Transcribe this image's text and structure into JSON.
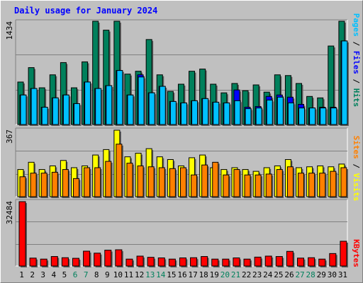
{
  "title": "Daily usage for January 2024",
  "colors": {
    "title": "#0000ff",
    "hits": "#00805c",
    "files": "#0000ff",
    "pages": "#00c0ff",
    "visits": "#ffff00",
    "sites": "#ff8000",
    "kbytes": "#ff0000",
    "weekend_label": "#00805c",
    "panel_bg": "#c0c0c0",
    "grid": "#808080"
  },
  "chart_data": [
    {
      "type": "bar",
      "title": "Daily usage for January 2024",
      "categories": [
        "1",
        "2",
        "3",
        "4",
        "5",
        "6",
        "7",
        "8",
        "9",
        "10",
        "11",
        "12",
        "13",
        "14",
        "15",
        "16",
        "17",
        "18",
        "19",
        "20",
        "21",
        "22",
        "23",
        "24",
        "25",
        "26",
        "27",
        "28",
        "29",
        "30",
        "31"
      ],
      "weekend_categories": [
        "6",
        "7",
        "13",
        "14",
        "20",
        "21",
        "27",
        "28"
      ],
      "ymax_label": "1434",
      "ylim": [
        0,
        1434
      ],
      "right_label": {
        "pages": "Pages",
        "sep1": " / ",
        "files": "Files",
        "sep2": " / ",
        "hits": "Hits"
      },
      "series": [
        {
          "name": "Hits",
          "values": [
            590,
            790,
            510,
            690,
            860,
            510,
            870,
            1434,
            1310,
            1434,
            700,
            740,
            1180,
            690,
            460,
            560,
            740,
            770,
            560,
            440,
            570,
            470,
            550,
            450,
            690,
            680,
            570,
            390,
            370,
            1090,
            1434
          ]
        },
        {
          "name": "Files",
          "values": [
            410,
            500,
            240,
            370,
            410,
            290,
            590,
            500,
            540,
            750,
            410,
            690,
            440,
            530,
            320,
            300,
            330,
            360,
            310,
            300,
            480,
            240,
            250,
            390,
            410,
            380,
            280,
            230,
            240,
            240,
            1160
          ]
        },
        {
          "name": "Pages",
          "values": [
            410,
            500,
            240,
            370,
            410,
            290,
            590,
            500,
            540,
            750,
            410,
            660,
            440,
            530,
            320,
            300,
            330,
            360,
            310,
            300,
            330,
            220,
            230,
            340,
            380,
            300,
            230,
            230,
            230,
            230,
            1160
          ]
        }
      ]
    },
    {
      "type": "bar",
      "ymax_label": "367",
      "ylim": [
        0,
        367
      ],
      "right_label": {
        "sites": "Sites",
        "sep": " / ",
        "visits": "Visits"
      },
      "series": [
        {
          "name": "Visits",
          "values": [
            150,
            190,
            150,
            170,
            200,
            160,
            170,
            230,
            260,
            367,
            220,
            240,
            265,
            220,
            205,
            170,
            215,
            230,
            160,
            150,
            160,
            150,
            140,
            160,
            170,
            205,
            160,
            165,
            170,
            165,
            180
          ]
        },
        {
          "name": "Sites",
          "values": [
            110,
            130,
            130,
            135,
            150,
            100,
            160,
            160,
            195,
            290,
            185,
            170,
            165,
            160,
            155,
            160,
            120,
            175,
            190,
            120,
            150,
            120,
            120,
            125,
            150,
            165,
            130,
            130,
            130,
            140,
            160
          ]
        }
      ]
    },
    {
      "type": "bar",
      "ymax_label": "32484",
      "ylim": [
        0,
        32484
      ],
      "right_label": {
        "kbytes": "KBytes"
      },
      "series": [
        {
          "name": "KBytes",
          "values": [
            32484,
            4000,
            3500,
            4800,
            4200,
            3900,
            7500,
            6500,
            8000,
            8200,
            3500,
            5000,
            4400,
            4100,
            3500,
            4100,
            4200,
            4800,
            3500,
            3500,
            4100,
            3500,
            4500,
            5000,
            4800,
            7400,
            4000,
            4200,
            3500,
            6300,
            12500
          ]
        }
      ]
    }
  ]
}
